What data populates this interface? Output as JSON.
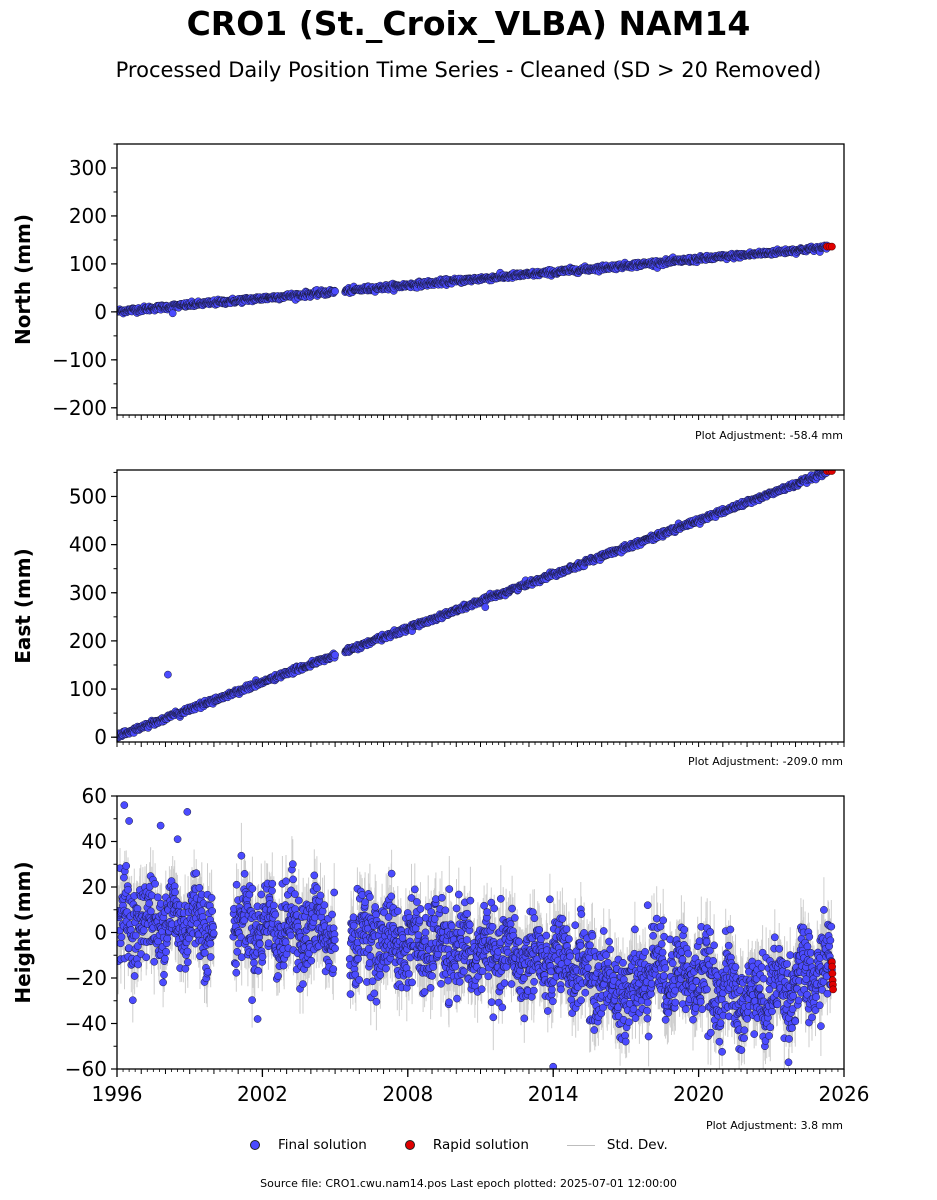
{
  "title": "CRO1 (St._Croix_VLBA) NAM14",
  "subtitle": "Processed Daily Position Time Series - Cleaned (SD > 20 Removed)",
  "source_text": "Source file: CRO1.cwu.nam14.pos  Last epoch plotted: 2025-07-01 12:00:00",
  "legend": {
    "final": "Final solution",
    "rapid": "Rapid solution",
    "std": "Std. Dev."
  },
  "colors": {
    "final": "#4b4bff",
    "rapid": "#e00000",
    "std": "#bdbdbd",
    "marker_edge": "#1a1a3a"
  },
  "adjustments": {
    "north": "Plot Adjustment: -58.4 mm",
    "east": "Plot Adjustment: -209.0 mm",
    "height": "Plot Adjustment: 3.8 mm"
  },
  "chart_data": [
    {
      "type": "scatter",
      "ylabel": "North (mm)",
      "xlim": [
        1996,
        2026
      ],
      "ylim": [
        -215,
        350
      ],
      "yticks": [
        300,
        200,
        100,
        0,
        -100,
        -200
      ],
      "ytick_labels": [
        "300",
        "200",
        "100",
        "0",
        "−100",
        "−200"
      ],
      "xticks": [],
      "trend": {
        "start_year": 1996.0,
        "start_value": 1,
        "end_year": 2025.5,
        "end_value": 135
      },
      "gap": [
        2005.0,
        2005.4
      ],
      "noise_sd": 3,
      "outliers": [
        {
          "x": 1998.3,
          "y": -3
        }
      ],
      "rapid": {
        "x_start": 2025.3,
        "x_end": 2025.5,
        "y": 136,
        "count": 3
      }
    },
    {
      "type": "scatter",
      "ylabel": "East (mm)",
      "xlim": [
        1996,
        2026
      ],
      "ylim": [
        -10,
        555
      ],
      "yticks": [
        500,
        400,
        300,
        200,
        100,
        0
      ],
      "ytick_labels": [
        "500",
        "400",
        "300",
        "200",
        "100",
        "0"
      ],
      "xticks": [],
      "trend": {
        "start_year": 1996.0,
        "start_value": 2,
        "end_year": 2025.5,
        "end_value": 553
      },
      "gap": [
        2005.0,
        2005.4
      ],
      "noise_sd": 3,
      "outliers": [
        {
          "x": 1998.1,
          "y": 130
        },
        {
          "x": 2011.2,
          "y": 270
        }
      ],
      "rapid": {
        "x_start": 2025.3,
        "x_end": 2025.5,
        "y": 553,
        "count": 3
      }
    },
    {
      "type": "scatter",
      "ylabel": "Height (mm)",
      "xlim": [
        1996,
        2026
      ],
      "ylim": [
        -60,
        60
      ],
      "yticks": [
        60,
        40,
        20,
        0,
        -20,
        -40,
        -60
      ],
      "ytick_labels": [
        "60",
        "40",
        "20",
        "0",
        "−20",
        "−40",
        "−60"
      ],
      "xticks": [
        1996,
        2002,
        2008,
        2014,
        2020,
        2026
      ],
      "xtick_labels": [
        "1996",
        "2002",
        "2008",
        "2014",
        "2020",
        "2026"
      ],
      "trend_points": [
        [
          1996,
          5
        ],
        [
          2000,
          5
        ],
        [
          2005,
          0
        ],
        [
          2008,
          -5
        ],
        [
          2012,
          -10
        ],
        [
          2015,
          -15
        ],
        [
          2017,
          -28
        ],
        [
          2018,
          -15
        ],
        [
          2020,
          -20
        ],
        [
          2022,
          -30
        ],
        [
          2024,
          -22
        ],
        [
          2025.5,
          -15
        ]
      ],
      "gaps": [
        [
          2000.0,
          2000.8
        ],
        [
          2005.0,
          2005.6
        ]
      ],
      "noise_sd": 10,
      "outliers": [
        {
          "x": 1996.3,
          "y": 56
        },
        {
          "x": 1996.5,
          "y": 49
        },
        {
          "x": 1997.8,
          "y": 47
        },
        {
          "x": 1998.9,
          "y": 53
        },
        {
          "x": 1998.5,
          "y": 41
        },
        {
          "x": 2014.0,
          "y": -59
        },
        {
          "x": 2017.9,
          "y": 12
        },
        {
          "x": 2001.8,
          "y": -38
        }
      ],
      "rapid": {
        "x_start": 2025.5,
        "x_end": 2025.55,
        "y_values": [
          -13,
          -15,
          -18,
          -21,
          -23,
          -25
        ]
      }
    }
  ]
}
